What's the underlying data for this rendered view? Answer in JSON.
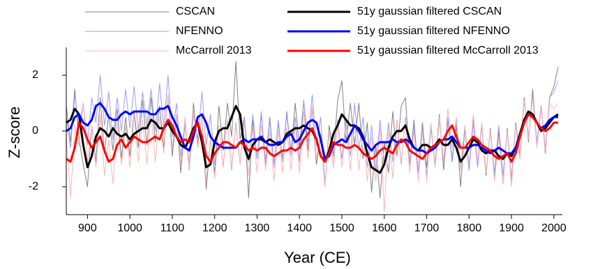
{
  "chart_data": {
    "type": "line",
    "x_label": "Year (CE)",
    "y_label": "Z-score",
    "xlim": [
      850,
      2020
    ],
    "ylim": [
      -3,
      3
    ],
    "xticks": [
      900,
      1000,
      1100,
      1200,
      1300,
      1400,
      1500,
      1600,
      1700,
      1800,
      1900,
      2000
    ],
    "yticks": [
      -2,
      0,
      2
    ],
    "x": [
      850,
      860,
      870,
      880,
      890,
      900,
      910,
      920,
      930,
      940,
      950,
      960,
      970,
      980,
      990,
      1000,
      1010,
      1020,
      1030,
      1040,
      1050,
      1060,
      1070,
      1080,
      1090,
      1100,
      1110,
      1120,
      1130,
      1140,
      1150,
      1160,
      1170,
      1180,
      1190,
      1200,
      1210,
      1220,
      1230,
      1240,
      1250,
      1260,
      1270,
      1280,
      1290,
      1300,
      1310,
      1320,
      1330,
      1340,
      1350,
      1360,
      1370,
      1380,
      1390,
      1400,
      1410,
      1420,
      1430,
      1440,
      1450,
      1460,
      1470,
      1480,
      1490,
      1500,
      1510,
      1520,
      1530,
      1540,
      1550,
      1560,
      1570,
      1580,
      1590,
      1600,
      1610,
      1620,
      1630,
      1640,
      1650,
      1660,
      1670,
      1680,
      1690,
      1700,
      1710,
      1720,
      1730,
      1740,
      1750,
      1760,
      1770,
      1780,
      1790,
      1800,
      1810,
      1820,
      1830,
      1840,
      1850,
      1860,
      1870,
      1880,
      1890,
      1900,
      1910,
      1920,
      1930,
      1940,
      1950,
      1960,
      1970,
      1980,
      1990,
      2000,
      2010
    ],
    "series": [
      {
        "name": "CSCAN",
        "color": "#808080",
        "width": 1,
        "values": [
          0.9,
          -0.4,
          1.5,
          -0.3,
          -1.2,
          -2.0,
          0.2,
          -1.1,
          1.2,
          -0.8,
          0.6,
          -0.7,
          0.8,
          -1.0,
          0.5,
          -0.9,
          0.7,
          -0.6,
          1.1,
          -0.5,
          1.2,
          -0.4,
          0.9,
          -0.6,
          1.3,
          -0.9,
          0.6,
          -1.5,
          0.3,
          -1.2,
          1.0,
          -0.5,
          0.6,
          -2.1,
          -0.3,
          -1.5,
          0.9,
          -0.7,
          1.0,
          -0.2,
          2.5,
          -0.3,
          0.5,
          -2.4,
          0.4,
          -1.0,
          0.6,
          -1.1,
          0.5,
          -1.2,
          0.3,
          -1.0,
          0.7,
          -0.8,
          1.0,
          -0.6,
          1.1,
          -0.7,
          0.8,
          -1.2,
          -0.1,
          -2.0,
          0.2,
          -0.9,
          1.1,
          1.8,
          -0.4,
          1.0,
          -0.5,
          1.0,
          -1.0,
          0.3,
          -2.2,
          -0.5,
          -2.4,
          -0.4,
          -1.5,
          0.7,
          -0.9,
          0.9,
          1.2,
          -1.2,
          0.4,
          -1.5,
          0.3,
          -1.3,
          0.2,
          -1.2,
          0.6,
          -1.4,
          0.4,
          -1.1,
          0.2,
          -2.0,
          0.1,
          -1.4,
          0.5,
          -1.2,
          0.2,
          -1.6,
          0.1,
          -1.6,
          0.0,
          -1.9,
          0.1,
          -1.8,
          0.3,
          -0.9,
          1.2,
          -0.4,
          1.5,
          -0.5,
          0.9,
          -0.8,
          1.2,
          1.6,
          2.3
        ]
      },
      {
        "name": "NFENNO",
        "color": "#9a9aff",
        "width": 1,
        "values": [
          0.5,
          -0.6,
          1.3,
          0.1,
          1.0,
          -0.5,
          1.2,
          0.3,
          2.0,
          0.2,
          1.4,
          -0.3,
          1.2,
          0.0,
          1.5,
          0.1,
          1.6,
          0.0,
          1.4,
          0.2,
          1.5,
          0.0,
          1.7,
          0.1,
          2.0,
          -0.2,
          1.0,
          -0.9,
          0.3,
          -1.4,
          0.6,
          -0.3,
          1.4,
          -0.5,
          0.6,
          -1.2,
          0.2,
          -1.3,
          0.4,
          -1.4,
          0.3,
          -1.2,
          0.5,
          -1.1,
          0.6,
          -1.0,
          0.7,
          -1.2,
          0.4,
          -1.3,
          0.4,
          -1.1,
          0.6,
          -0.9,
          0.5,
          -1.1,
          1.1,
          -0.4,
          1.3,
          -0.5,
          0.5,
          -1.9,
          0.0,
          -1.3,
          0.4,
          -1.0,
          0.4,
          -0.9,
          1.0,
          -0.7,
          0.5,
          -1.3,
          0.2,
          -1.4,
          0.4,
          -1.2,
          0.3,
          -1.1,
          0.4,
          -1.2,
          0.5,
          -1.2,
          0.2,
          -1.5,
          0.1,
          -1.6,
          0.1,
          -1.3,
          0.4,
          -1.1,
          0.5,
          -1.0,
          0.4,
          -1.4,
          0.2,
          -1.4,
          0.3,
          -1.3,
          0.2,
          -1.5,
          0.0,
          -1.5,
          0.2,
          -1.6,
          0.0,
          -1.7,
          0.2,
          -1.0,
          1.1,
          -0.2,
          1.3,
          -0.4,
          0.9,
          -0.6,
          1.2,
          1.4,
          1.8
        ]
      },
      {
        "name": "McCarroll 2013",
        "color": "#ffb4b4",
        "width": 1,
        "values": [
          -0.2,
          -2.4,
          0.2,
          -0.5,
          1.0,
          -1.1,
          0.2,
          -1.3,
          0.6,
          -1.6,
          -0.3,
          -1.9,
          0.3,
          -1.2,
          0.2,
          -1.3,
          0.6,
          -1.1,
          0.4,
          -1.2,
          0.6,
          -1.1,
          0.5,
          -0.8,
          1.3,
          -0.6,
          0.6,
          -1.2,
          0.5,
          -1.3,
          0.8,
          -0.6,
          0.6,
          -1.8,
          -0.3,
          -1.7,
          0.2,
          -1.3,
          0.4,
          -1.3,
          0.2,
          -1.2,
          0.3,
          -1.6,
          0.1,
          -1.5,
          0.2,
          -1.4,
          0.0,
          -1.8,
          0.0,
          -1.5,
          0.1,
          -1.4,
          0.2,
          -1.5,
          0.7,
          -1.0,
          0.9,
          -1.0,
          -0.1,
          -2.0,
          0.0,
          -1.3,
          0.3,
          -1.3,
          0.2,
          -1.4,
          0.3,
          -1.4,
          0.0,
          -1.8,
          -0.2,
          -1.8,
          0.1,
          -2.9,
          0.0,
          -1.7,
          0.4,
          -1.1,
          0.4,
          -1.5,
          0.0,
          -1.8,
          0.0,
          -1.8,
          0.3,
          -1.3,
          0.5,
          -1.1,
          0.8,
          -0.6,
          0.5,
          -1.4,
          0.2,
          -1.2,
          0.6,
          -1.1,
          0.3,
          -1.5,
          0.0,
          -1.8,
          -0.2,
          -1.9,
          0.0,
          -2.0,
          0.2,
          -1.0,
          1.1,
          -0.3,
          1.2,
          -0.6,
          0.8,
          -0.7,
          1.0,
          0.8,
          1.0
        ]
      },
      {
        "name": "51y gaussian filtered CSCAN",
        "color": "#000000",
        "width": 3,
        "values": [
          0.3,
          0.4,
          0.8,
          0.6,
          -0.5,
          -1.3,
          -0.9,
          -0.2,
          0.1,
          0.0,
          -0.2,
          0.1,
          -0.1,
          -0.2,
          -0.1,
          -0.3,
          -0.1,
          0.0,
          0.1,
          0.1,
          0.4,
          0.3,
          0.1,
          0.1,
          0.3,
          0.0,
          -0.2,
          -0.5,
          -0.6,
          -0.3,
          0.1,
          0.3,
          -0.4,
          -1.3,
          -1.2,
          -0.4,
          0.0,
          0.1,
          0.1,
          0.5,
          0.9,
          0.6,
          -0.6,
          -1.0,
          -0.5,
          -0.3,
          -0.3,
          -0.4,
          -0.3,
          -0.4,
          -0.5,
          -0.4,
          -0.1,
          0.0,
          0.1,
          0.1,
          0.2,
          0.1,
          0.0,
          -0.3,
          -0.9,
          -1.1,
          -0.7,
          -0.1,
          0.2,
          0.6,
          0.4,
          0.2,
          0.2,
          0.1,
          -0.2,
          -0.8,
          -1.3,
          -1.4,
          -1.5,
          -1.2,
          -0.6,
          -0.2,
          0.0,
          0.0,
          0.2,
          -0.3,
          -0.6,
          -0.7,
          -0.5,
          -0.5,
          -0.6,
          -0.5,
          -0.3,
          -0.5,
          -0.5,
          -0.3,
          -0.6,
          -1.1,
          -0.9,
          -0.6,
          -0.3,
          -0.4,
          -0.7,
          -0.8,
          -0.7,
          -0.7,
          -0.9,
          -1.0,
          -0.8,
          -0.9,
          -0.6,
          -0.1,
          0.4,
          0.7,
          0.6,
          0.3,
          0.0,
          0.1,
          0.3,
          0.5,
          0.6
        ]
      },
      {
        "name": "51y gaussian filtered NFENNO",
        "color": "#0000ff",
        "width": 3,
        "values": [
          0.0,
          0.1,
          0.5,
          0.6,
          0.3,
          0.2,
          0.4,
          0.9,
          1.0,
          0.8,
          0.5,
          0.4,
          0.4,
          0.6,
          0.7,
          0.6,
          0.7,
          0.7,
          0.7,
          0.7,
          0.6,
          0.6,
          0.8,
          0.8,
          0.9,
          0.5,
          0.2,
          -0.2,
          -0.6,
          -0.7,
          -0.2,
          0.5,
          0.6,
          0.3,
          -0.2,
          -0.4,
          -0.5,
          -0.6,
          -0.6,
          -0.6,
          -0.6,
          -0.4,
          -0.3,
          -0.4,
          -0.3,
          -0.3,
          -0.2,
          -0.4,
          -0.5,
          -0.5,
          -0.4,
          -0.4,
          -0.2,
          -0.1,
          -0.4,
          -0.3,
          0.0,
          0.3,
          0.4,
          0.3,
          -0.3,
          -1.0,
          -0.9,
          -0.5,
          -0.4,
          -0.3,
          -0.4,
          -0.1,
          0.2,
          0.0,
          -0.3,
          -0.5,
          -0.7,
          -0.5,
          -0.4,
          -0.4,
          -0.4,
          -0.3,
          -0.4,
          -0.4,
          -0.3,
          -0.4,
          -0.6,
          -0.7,
          -0.7,
          -0.8,
          -0.7,
          -0.6,
          -0.4,
          -0.3,
          -0.3,
          -0.2,
          -0.4,
          -0.6,
          -0.6,
          -0.6,
          -0.5,
          -0.5,
          -0.6,
          -0.7,
          -0.8,
          -0.7,
          -0.6,
          -0.7,
          -0.8,
          -0.8,
          -0.6,
          -0.2,
          0.3,
          0.6,
          0.5,
          0.3,
          0.1,
          0.2,
          0.4,
          0.5,
          0.5
        ]
      },
      {
        "name": "51y gaussian filtered McCarroll 2013",
        "color": "#ff0000",
        "width": 3,
        "values": [
          -1.0,
          -1.1,
          -0.6,
          0.3,
          0.1,
          -0.3,
          -0.6,
          -0.4,
          -0.2,
          -0.7,
          -1.1,
          -1.0,
          -0.5,
          -0.3,
          -0.6,
          -0.4,
          -0.2,
          -0.3,
          -0.4,
          -0.4,
          -0.3,
          -0.2,
          -0.3,
          0.1,
          0.4,
          0.2,
          -0.2,
          -0.4,
          -0.3,
          -0.4,
          0.0,
          0.3,
          -0.2,
          -0.9,
          -1.1,
          -0.8,
          -0.6,
          -0.4,
          -0.4,
          -0.5,
          -0.6,
          -0.4,
          -0.5,
          -0.7,
          -0.6,
          -0.7,
          -0.6,
          -0.6,
          -0.8,
          -0.9,
          -0.8,
          -0.7,
          -0.7,
          -0.6,
          -0.7,
          -0.6,
          -0.3,
          -0.1,
          0.1,
          -0.3,
          -0.9,
          -1.1,
          -0.8,
          -0.4,
          -0.5,
          -0.5,
          -0.6,
          -0.6,
          -0.5,
          -0.6,
          -0.8,
          -0.9,
          -1.0,
          -0.9,
          -0.7,
          -0.6,
          -0.7,
          -0.8,
          -0.5,
          -0.3,
          -0.4,
          -0.7,
          -0.8,
          -0.9,
          -1.0,
          -0.8,
          -0.6,
          -0.5,
          -0.4,
          -0.3,
          0.0,
          0.2,
          -0.2,
          -0.6,
          -0.6,
          -0.4,
          -0.2,
          -0.3,
          -0.5,
          -0.6,
          -0.7,
          -0.9,
          -1.0,
          -0.9,
          -0.8,
          -1.1,
          -0.8,
          -0.2,
          0.3,
          0.6,
          0.5,
          0.3,
          0.1,
          0.0,
          0.1,
          0.3,
          0.3
        ]
      }
    ]
  }
}
